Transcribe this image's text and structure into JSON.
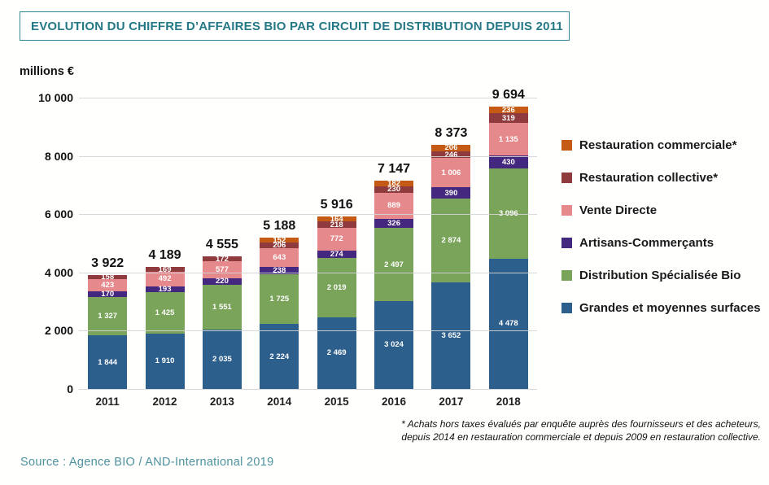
{
  "title": "EVOLUTION DU CHIFFRE D’AFFAIRES BIO PAR CIRCUIT DE DISTRIBUTION DEPUIS 2011",
  "source": "Source : Agence BIO / AND-International 2019",
  "footnote_line1": "* Achats hors taxes évalués par enquête auprès des fournisseurs et des acheteurs,",
  "footnote_line2": "depuis 2014 en restauration commerciale et  depuis 2009 en restauration collective.",
  "colors": {
    "title_teal": "#257986",
    "title_border": "#2f8894",
    "source_teal": "#4d929e",
    "gridline": "#d5d5d5",
    "gms_blue": "#2d5f8d",
    "bio_green": "#79a45a",
    "artisans_purple": "#44277e",
    "vente_pink": "#e6898c",
    "collective_maroon": "#8f3b3d",
    "commerciale_orange": "#c45a13"
  },
  "chart_data": {
    "type": "bar",
    "stacked": true,
    "title": "EVOLUTION DU CHIFFRE D’AFFAIRES BIO PAR CIRCUIT DE DISTRIBUTION DEPUIS 2011",
    "ylabel": "millions €",
    "xlabel": "",
    "ylim": [
      0,
      10000
    ],
    "ytick_values": [
      0,
      2000,
      4000,
      6000,
      8000,
      10000
    ],
    "ytick_labels": [
      "0",
      "2 000",
      "4 000",
      "6 000",
      "8 000",
      "10 000"
    ],
    "grid": true,
    "legend_position": "right",
    "categories": [
      "2011",
      "2012",
      "2013",
      "2014",
      "2015",
      "2016",
      "2017",
      "2018"
    ],
    "totals": [
      3922,
      4189,
      4555,
      5188,
      5916,
      7147,
      8373,
      9694
    ],
    "series": [
      {
        "name": "Grandes et moyennes surfaces",
        "color": "#2d5f8d",
        "values": [
          1844,
          1910,
          2035,
          2224,
          2469,
          3024,
          3652,
          4478
        ]
      },
      {
        "name": "Distribution Spécialisée Bio",
        "color": "#79a45a",
        "values": [
          1327,
          1425,
          1551,
          1725,
          2019,
          2497,
          2874,
          3096
        ]
      },
      {
        "name": "Artisans-Commerçants",
        "color": "#44277e",
        "values": [
          170,
          193,
          220,
          238,
          274,
          326,
          390,
          430
        ]
      },
      {
        "name": "Vente Directe",
        "color": "#e6898c",
        "values": [
          423,
          492,
          577,
          643,
          772,
          889,
          1006,
          1135
        ]
      },
      {
        "name": "Restauration collective*",
        "color": "#8f3b3d",
        "values": [
          158,
          169,
          172,
          206,
          218,
          230,
          246,
          319
        ]
      },
      {
        "name": "Restauration commerciale*",
        "color": "#c45a13",
        "values": [
          null,
          null,
          null,
          152,
          164,
          182,
          206,
          236
        ]
      }
    ],
    "legend_order": [
      5,
      4,
      3,
      2,
      1,
      0
    ]
  }
}
